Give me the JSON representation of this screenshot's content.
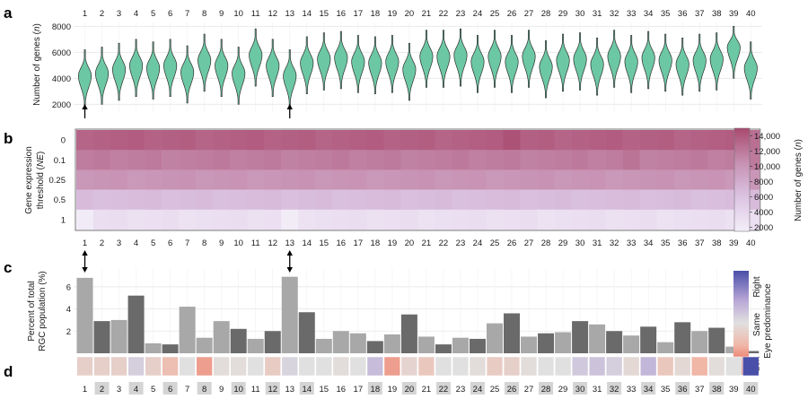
{
  "panels": {
    "a": {
      "label": "a"
    },
    "b": {
      "label": "b"
    },
    "c": {
      "label": "c"
    },
    "d": {
      "label": "d"
    }
  },
  "chart_data": [
    {
      "panel": "a",
      "type": "violin",
      "x": [
        1,
        2,
        3,
        4,
        5,
        6,
        7,
        8,
        9,
        10,
        11,
        12,
        13,
        14,
        15,
        16,
        17,
        18,
        19,
        20,
        21,
        22,
        23,
        24,
        25,
        26,
        27,
        28,
        29,
        30,
        31,
        32,
        33,
        34,
        35,
        36,
        37,
        38,
        39,
        40
      ],
      "medians": [
        4200,
        4400,
        4700,
        5000,
        4800,
        5000,
        4500,
        5400,
        5000,
        4400,
        5800,
        5000,
        4200,
        5200,
        5500,
        5600,
        5300,
        5200,
        5300,
        4700,
        5700,
        5700,
        5800,
        5300,
        5700,
        5300,
        5700,
        4900,
        5400,
        5500,
        5100,
        5700,
        5300,
        5600,
        5400,
        5100,
        5400,
        5500,
        6400,
        4800
      ],
      "ylabel_parts": [
        "Number of genes (",
        "n",
        ")"
      ],
      "yticks": [
        2000,
        4000,
        6000,
        8000
      ],
      "ylim": [
        1400,
        8300
      ],
      "fill": "#6cc8a4",
      "markers": [
        1,
        13
      ]
    },
    {
      "panel": "b",
      "type": "heatmap",
      "rows": [
        "0",
        "0.1",
        "0.25",
        "0.5",
        "1"
      ],
      "columns": [
        1,
        2,
        3,
        4,
        5,
        6,
        7,
        8,
        9,
        10,
        11,
        12,
        13,
        14,
        15,
        16,
        17,
        18,
        19,
        20,
        21,
        22,
        23,
        24,
        25,
        26,
        27,
        28,
        29,
        30,
        31,
        32,
        33,
        34,
        35,
        36,
        37,
        38,
        39,
        40
      ],
      "row_values": [
        13600,
        11800,
        10200,
        6600,
        3100
      ],
      "overrides": [
        {
          "row": 0,
          "col": 26,
          "value": 14500
        },
        {
          "row": 0,
          "col": 40,
          "value": 12600
        },
        {
          "row": 1,
          "col": 33,
          "value": 12400
        },
        {
          "row": 4,
          "col": 1,
          "value": 1800
        },
        {
          "row": 4,
          "col": 13,
          "value": 1700
        }
      ],
      "ylabel_parts": [
        "Gene expression",
        "threshold (",
        "NE",
        ")"
      ],
      "colorbar": {
        "ticks": [
          "14,000",
          "12,000",
          "10,000",
          "8000",
          "6000",
          "4000",
          "2000"
        ],
        "tick_values": [
          14000,
          12000,
          10000,
          8000,
          6000,
          4000,
          2000
        ],
        "label_parts": [
          "Number of genes (",
          "n",
          ")"
        ],
        "range": [
          1500,
          15000
        ],
        "colors": [
          "#f3eef8",
          "#dcc4e3",
          "#c792b3",
          "#a94a6f"
        ]
      }
    },
    {
      "panel": "c",
      "type": "bar",
      "categories": [
        1,
        2,
        3,
        4,
        5,
        6,
        7,
        8,
        9,
        10,
        11,
        12,
        13,
        14,
        15,
        16,
        17,
        18,
        19,
        20,
        21,
        22,
        23,
        24,
        25,
        26,
        27,
        28,
        29,
        30,
        31,
        32,
        33,
        34,
        35,
        36,
        37,
        38,
        39,
        40
      ],
      "values": [
        6.8,
        2.9,
        3.0,
        5.2,
        0.9,
        0.8,
        4.2,
        1.4,
        2.9,
        2.2,
        1.3,
        2.0,
        6.9,
        3.7,
        1.3,
        2.0,
        1.8,
        1.1,
        1.7,
        3.5,
        1.5,
        0.8,
        1.4,
        1.3,
        2.7,
        3.6,
        1.5,
        1.8,
        1.9,
        2.9,
        2.6,
        2.0,
        1.6,
        2.4,
        1.0,
        2.8,
        2.0,
        2.3,
        0.6,
        0.2
      ],
      "ylabel_parts": [
        "Percent of total",
        "RGC population (%)"
      ],
      "yticks": [
        2,
        4,
        6
      ],
      "ylim": [
        0,
        7.6
      ],
      "dark_bars": [
        2,
        4,
        6,
        10,
        12,
        14,
        18,
        20,
        22,
        24,
        26,
        28,
        30,
        32,
        34,
        36,
        38,
        40
      ],
      "bar_colors": {
        "dark": "#6a6a6a",
        "light": "#a8a8a8"
      },
      "markers": [
        1,
        13
      ],
      "legend": {
        "labels": [
          "Right",
          "Same",
          "Left"
        ],
        "title": "Eye predominance",
        "colors": [
          "#e8402f",
          "#f0b6a6",
          "#e0e0e0",
          "#b7a5d6",
          "#4a4fa8"
        ]
      }
    },
    {
      "panel": "d",
      "type": "color_strip",
      "x": [
        1,
        2,
        3,
        4,
        5,
        6,
        7,
        8,
        9,
        10,
        11,
        12,
        13,
        14,
        15,
        16,
        17,
        18,
        19,
        20,
        21,
        22,
        23,
        24,
        25,
        26,
        27,
        28,
        29,
        30,
        31,
        32,
        33,
        34,
        35,
        36,
        37,
        38,
        39,
        40
      ],
      "eye_values": [
        0.2,
        0.2,
        0.2,
        -0.15,
        0.2,
        0.4,
        0.0,
        0.6,
        0.05,
        0.05,
        0.0,
        0.25,
        -0.1,
        0.0,
        0.0,
        0.05,
        0.0,
        -0.3,
        0.6,
        0.15,
        0.3,
        0.0,
        0.0,
        0.05,
        0.25,
        0.2,
        0.05,
        0.0,
        0.0,
        -0.2,
        -0.25,
        -0.15,
        0.1,
        -0.35,
        0.3,
        0.1,
        0.5,
        0.05,
        0.0,
        -1.0
      ],
      "label_box_columns": [
        2,
        4,
        6,
        8,
        10,
        12,
        14,
        18,
        20,
        22,
        24,
        26,
        28,
        30,
        32,
        34,
        36,
        38,
        40
      ]
    }
  ]
}
